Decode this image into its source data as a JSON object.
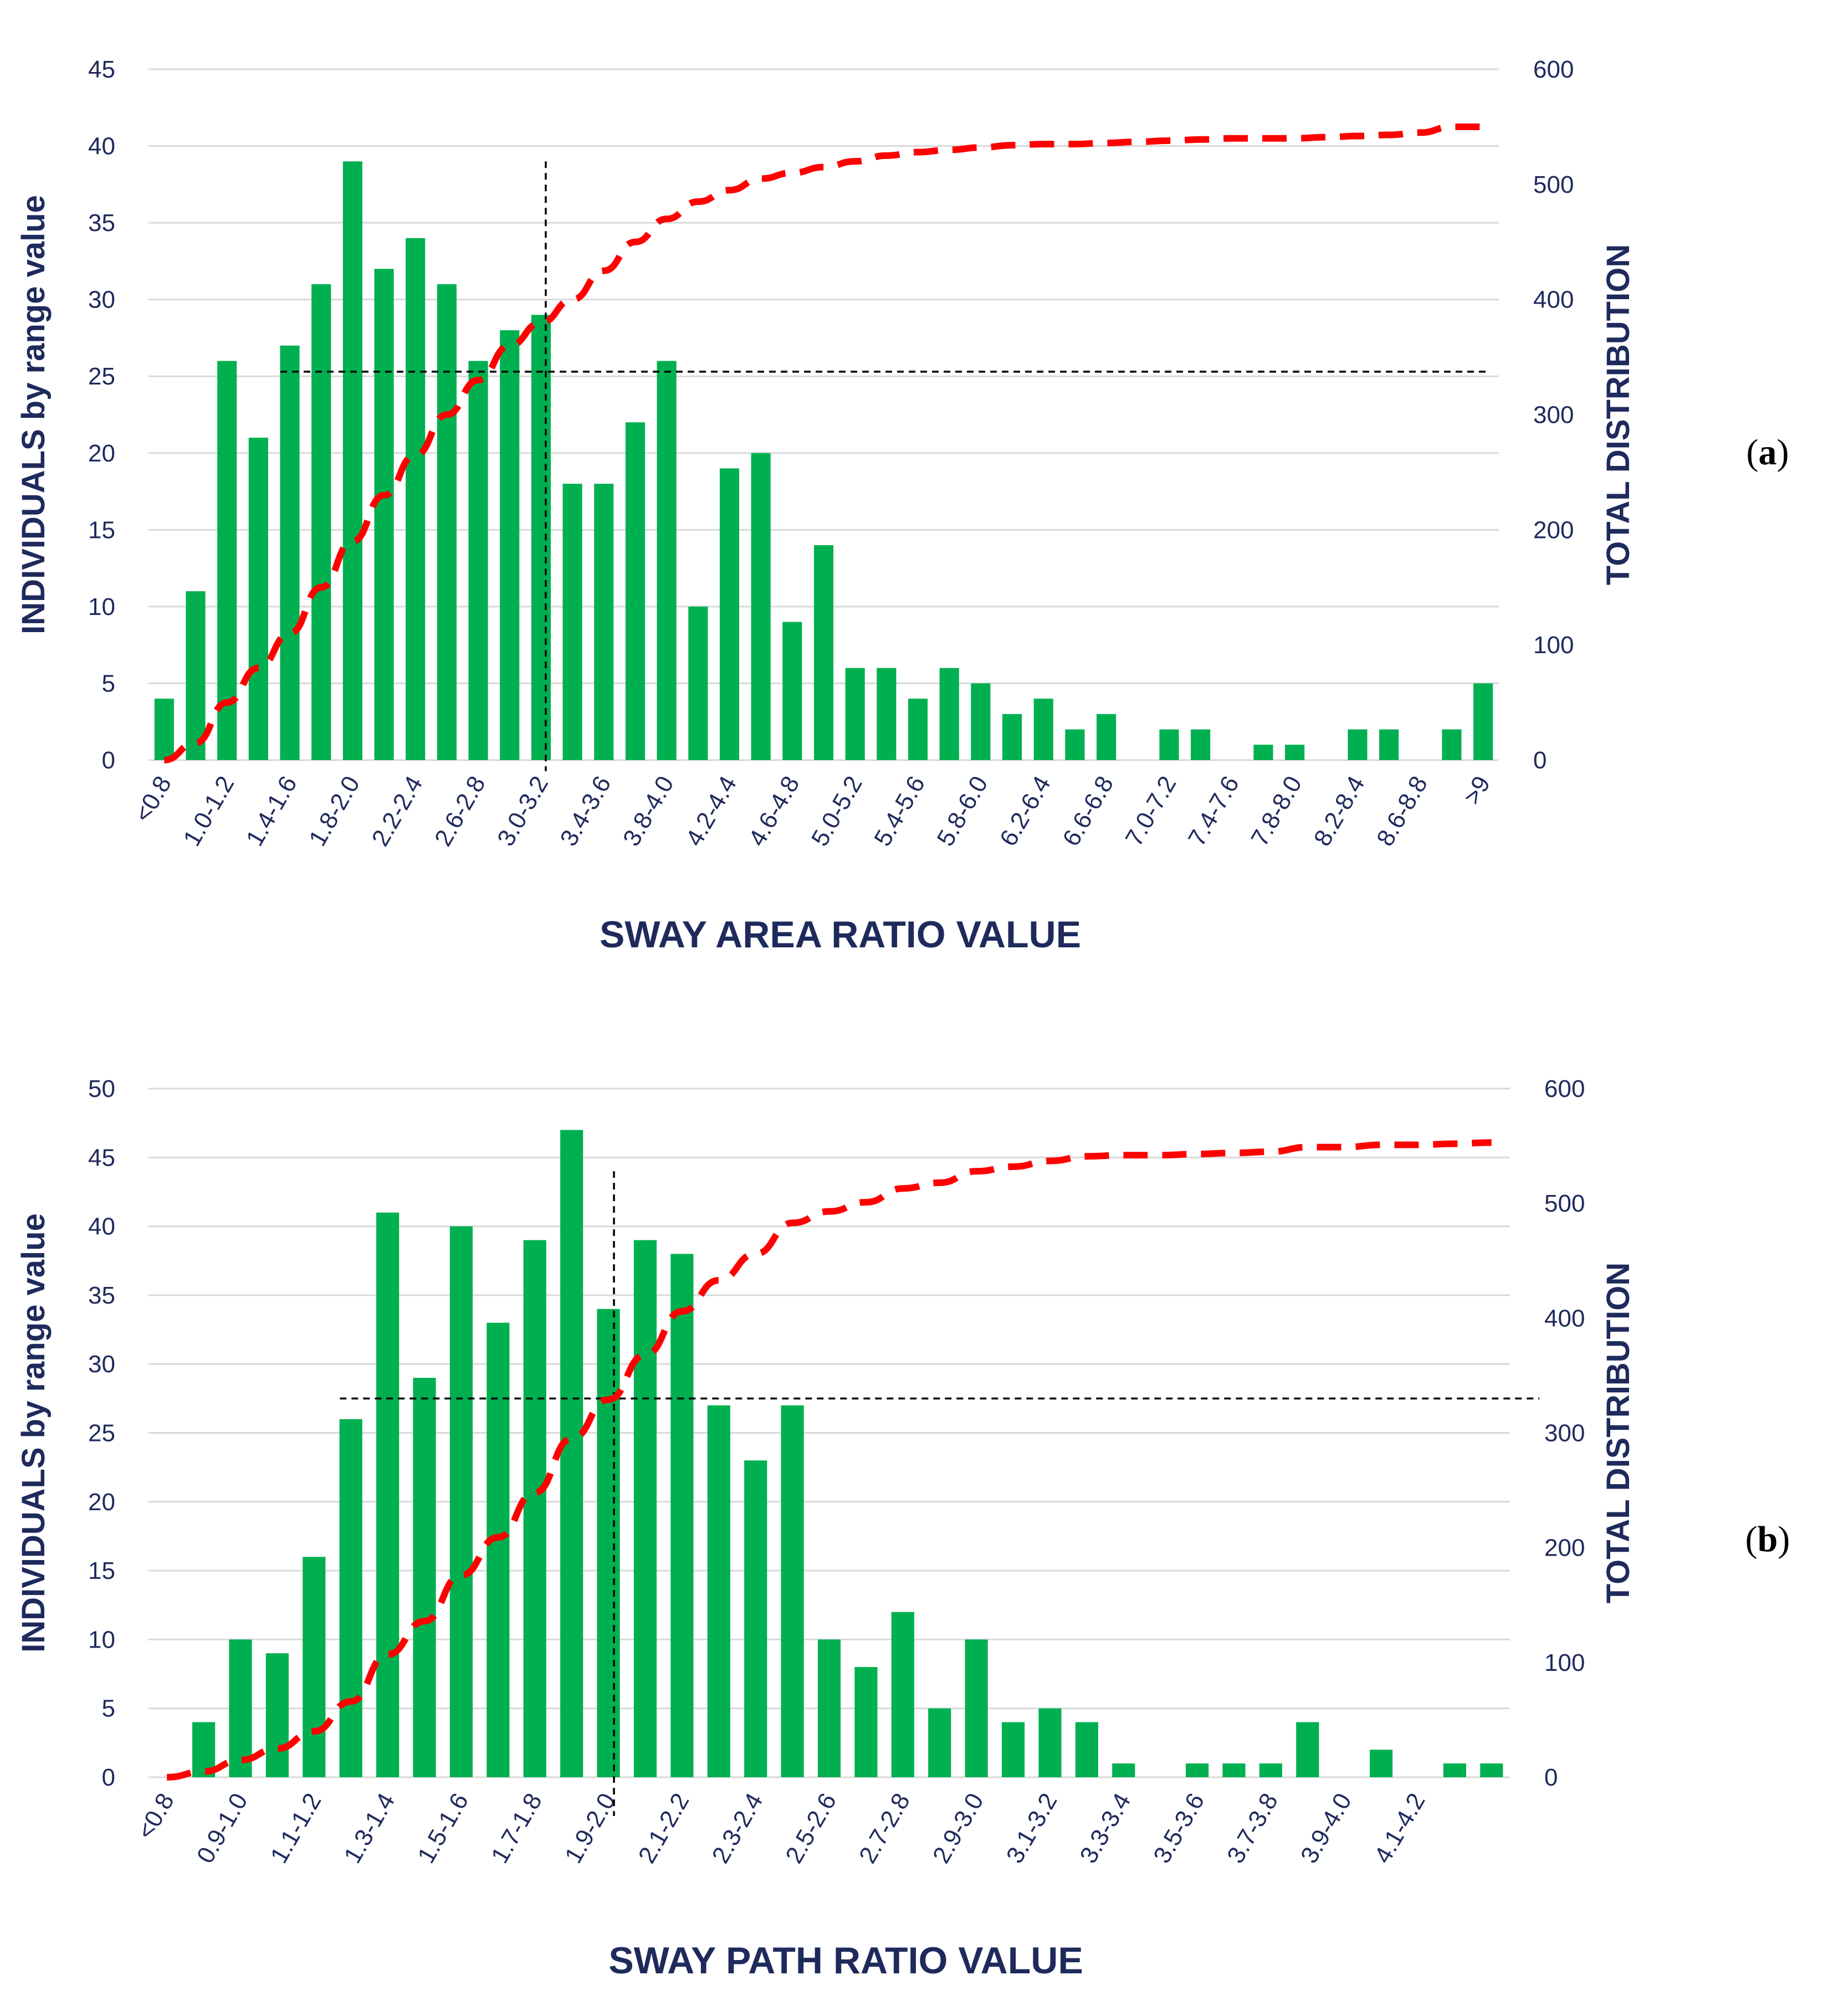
{
  "colors": {
    "bar": "#00b050",
    "cumulative": "#ff0000",
    "axis_text": "#1f2a5c",
    "grid": "#d9d9d9"
  },
  "chart_data": [
    {
      "id": "a",
      "panel_label": {
        "open": "(",
        "letter": "a",
        "close": ")"
      },
      "type": "bar",
      "xlabel": "SWAY AREA RATIO VALUE",
      "ylabel": "INDIVIDUALS by range value",
      "y2label": "TOTAL DISTRIBUTION",
      "ylim": [
        0,
        45
      ],
      "yticks": [
        0,
        5,
        10,
        15,
        20,
        25,
        30,
        35,
        40,
        45
      ],
      "y2lim": [
        0,
        600
      ],
      "y2ticks": [
        0,
        100,
        200,
        300,
        400,
        500,
        600
      ],
      "grid": true,
      "categories": [
        "<0.8",
        "0.8-1.0",
        "1.0-1.2",
        "1.2-1.4",
        "1.4-1.6",
        "1.6-1.8",
        "1.8-2.0",
        "2.0-2.2",
        "2.2-2.4",
        "2.4-2.6",
        "2.6-2.8",
        "2.8-3.0",
        "3.0-3.2",
        "3.2-3.4",
        "3.4-3.6",
        "3.6-3.8",
        "3.8-4.0",
        "4.0-4.2",
        "4.2-4.4",
        "4.4-4.6",
        "4.6-4.8",
        "4.8-5.0",
        "5.0-5.2",
        "5.2-5.4",
        "5.4-5.6",
        "5.6-5.8",
        "5.8-6.0",
        "6.0-6.2",
        "6.2-6.4",
        "6.4-6.6",
        "6.6-6.8",
        "6.8-7.0",
        "7.0-7.2",
        "7.2-7.4",
        "7.4-7.6",
        "7.6-7.8",
        "7.8-8.0",
        "8.0-8.2",
        "8.2-8.4",
        "8.4-8.6",
        "8.6-8.8",
        "8.8-9.0",
        ">9"
      ],
      "tick_labels": [
        "<0.8",
        "1.0-1.2",
        "1.4-1.6",
        "1.8-2.0",
        "2.2-2.4",
        "2.6-2.8",
        "3.0-3.2",
        "3.4-3.6",
        "3.8-4.0",
        "4.2-4.4",
        "4.6-4.8",
        "5.0-5.2",
        "5.4-5.6",
        "5.8-6.0",
        "6.2-6.4",
        "6.6-6.8",
        "7.0-7.2",
        "7.4-7.6",
        "7.8-8.0",
        "8.2-8.4",
        "8.6-8.8",
        ">9"
      ],
      "series": [
        {
          "name": "Individuals",
          "axis": "left",
          "type": "bar",
          "values": [
            4,
            11,
            26,
            21,
            27,
            31,
            39,
            32,
            34,
            31,
            26,
            28,
            29,
            18,
            18,
            22,
            26,
            10,
            19,
            20,
            9,
            14,
            6,
            6,
            4,
            6,
            5,
            3,
            4,
            2,
            3,
            0,
            2,
            2,
            0,
            1,
            1,
            0,
            2,
            2,
            0,
            2,
            5
          ]
        },
        {
          "name": "Total distribution",
          "axis": "right",
          "type": "line",
          "style": "dashed",
          "values": [
            0,
            15,
            50,
            80,
            110,
            150,
            190,
            230,
            265,
            300,
            330,
            360,
            380,
            400,
            425,
            450,
            470,
            485,
            495,
            505,
            510,
            515,
            520,
            525,
            528,
            530,
            532,
            534,
            535,
            535,
            536,
            537,
            538,
            539,
            540,
            540,
            540,
            541,
            542,
            543,
            545,
            550,
            550
          ]
        }
      ],
      "annotations": [
        {
          "type": "vline",
          "x_category": "3.0-3.2",
          "y_from": 0,
          "y_to": 39
        },
        {
          "type": "hline",
          "y": 25.3,
          "x_from_category": "1.4-1.6",
          "x_to_category": ">9"
        }
      ]
    },
    {
      "id": "b",
      "panel_label": {
        "open": "(",
        "letter": "b",
        "close": ")"
      },
      "type": "bar",
      "xlabel": "SWAY PATH RATIO VALUE",
      "ylabel": "INDIVIDUALS by range value",
      "y2label": "TOTAL DISTRIBUTION",
      "ylim": [
        0,
        50
      ],
      "yticks": [
        0,
        5,
        10,
        15,
        20,
        25,
        30,
        35,
        40,
        45,
        50
      ],
      "y2lim": [
        0,
        600
      ],
      "y2ticks": [
        0,
        100,
        200,
        300,
        400,
        500,
        600
      ],
      "grid": true,
      "categories": [
        "<0.8",
        "0.8-0.9",
        "0.9-1.0",
        "1.0-1.1",
        "1.1-1.2",
        "1.2-1.3",
        "1.3-1.4",
        "1.4-1.5",
        "1.5-1.6",
        "1.6-1.7",
        "1.7-1.8",
        "1.8-1.9",
        "1.9-2.0",
        "2.0-2.1",
        "2.1-2.2",
        "2.2-2.3",
        "2.3-2.4",
        "2.4-2.5",
        "2.5-2.6",
        "2.6-2.7",
        "2.7-2.8",
        "2.8-2.9",
        "2.9-3.0",
        "3.0-3.1",
        "3.1-3.2",
        "3.2-3.3",
        "3.3-3.4",
        "3.4-3.5",
        "3.5-3.6",
        "3.6-3.7",
        "3.7-3.8",
        "3.8-3.9",
        "3.9-4.0",
        "4.0-4.1",
        "4.1-4.2",
        "4.2-4.3",
        "4.3-4.4"
      ],
      "tick_labels": [
        "<0.8",
        "0.9-1.0",
        "1.1-1.2",
        "1.3-1.4",
        "1.5-1.6",
        "1.7-1.8",
        "1.9-2.0",
        "2.1-2.2",
        "2.3-2.4",
        "2.5-2.6",
        "2.7-2.8",
        "2.9-3.0",
        "3.1-3.2",
        "3.3-3.4",
        "3.5-3.6",
        "3.7-3.8",
        "3.9-4.0",
        "4.1-4.2"
      ],
      "series": [
        {
          "name": "Individuals",
          "axis": "left",
          "type": "bar",
          "values": [
            0,
            4,
            10,
            9,
            16,
            26,
            41,
            29,
            40,
            33,
            39,
            47,
            34,
            39,
            38,
            27,
            23,
            27,
            10,
            8,
            12,
            5,
            10,
            4,
            5,
            4,
            1,
            0,
            1,
            1,
            1,
            4,
            0,
            2,
            0,
            1,
            1
          ]
        },
        {
          "name": "Total distribution",
          "axis": "right",
          "type": "line",
          "style": "dashed",
          "values": [
            0,
            5,
            15,
            25,
            40,
            66,
            107,
            136,
            176,
            209,
            248,
            295,
            329,
            368,
            406,
            433,
            456,
            483,
            493,
            501,
            513,
            518,
            528,
            532,
            537,
            541,
            542,
            542,
            543,
            544,
            545,
            549,
            549,
            551,
            551,
            552,
            553
          ]
        }
      ],
      "annotations": [
        {
          "type": "vline",
          "x_category": "1.9-2.0",
          "y_from": 0,
          "y_to": 44
        },
        {
          "type": "hline",
          "y": 27.5,
          "x_from_category": "1.2-1.3",
          "x_to_category": "4.3-4.4"
        }
      ]
    }
  ]
}
